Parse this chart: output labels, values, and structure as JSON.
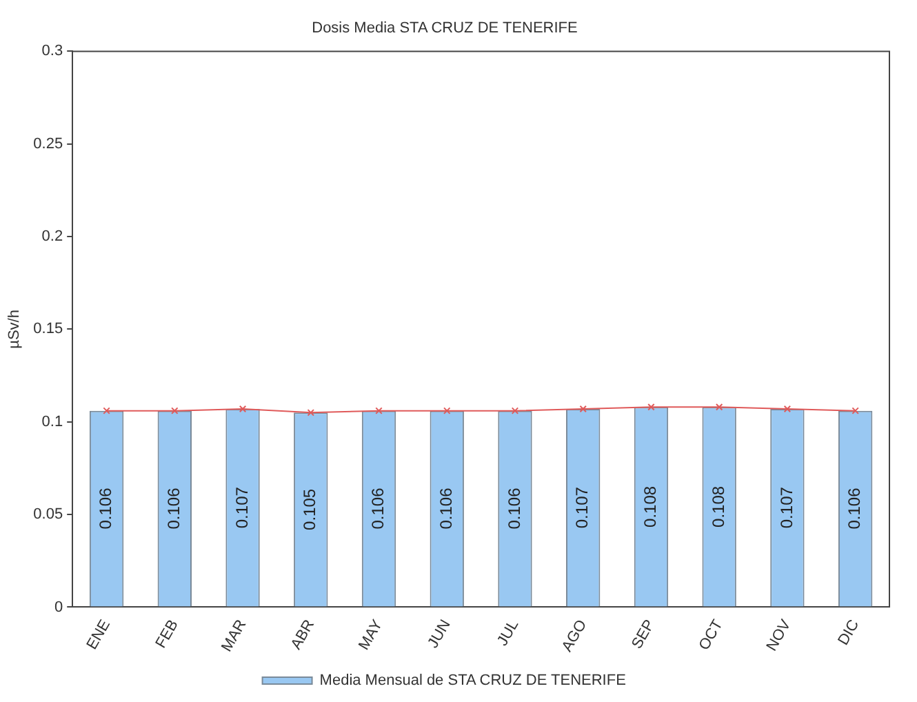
{
  "chart_data": {
    "type": "bar",
    "title": "Dosis Media STA CRUZ DE TENERIFE",
    "ylabel": "µSv/h",
    "categories": [
      "ENE",
      "FEB",
      "MAR",
      "ABR",
      "MAY",
      "JUN",
      "JUL",
      "AGO",
      "SEP",
      "OCT",
      "NOV",
      "DIC"
    ],
    "series": [
      {
        "name": "Media Mensual de STA CRUZ DE TENERIFE",
        "color": "#99c8f2",
        "values": [
          0.106,
          0.106,
          0.107,
          0.105,
          0.106,
          0.106,
          0.106,
          0.107,
          0.108,
          0.108,
          0.107,
          0.106
        ],
        "value_labels": [
          "0.106",
          "0.106",
          "0.107",
          "0.105",
          "0.106",
          "0.106",
          "0.106",
          "0.107",
          "0.108",
          "0.108",
          "0.107",
          "0.106"
        ]
      },
      {
        "type": "line",
        "color": "#e05a5a",
        "marker": "cross",
        "values": [
          0.106,
          0.106,
          0.107,
          0.105,
          0.106,
          0.106,
          0.106,
          0.107,
          0.108,
          0.108,
          0.107,
          0.106
        ]
      }
    ],
    "ylim": [
      0,
      0.3
    ],
    "yticks": [
      0,
      0.05,
      0.1,
      0.15,
      0.2,
      0.25,
      0.3
    ],
    "grid": false,
    "legend": "bottom"
  }
}
